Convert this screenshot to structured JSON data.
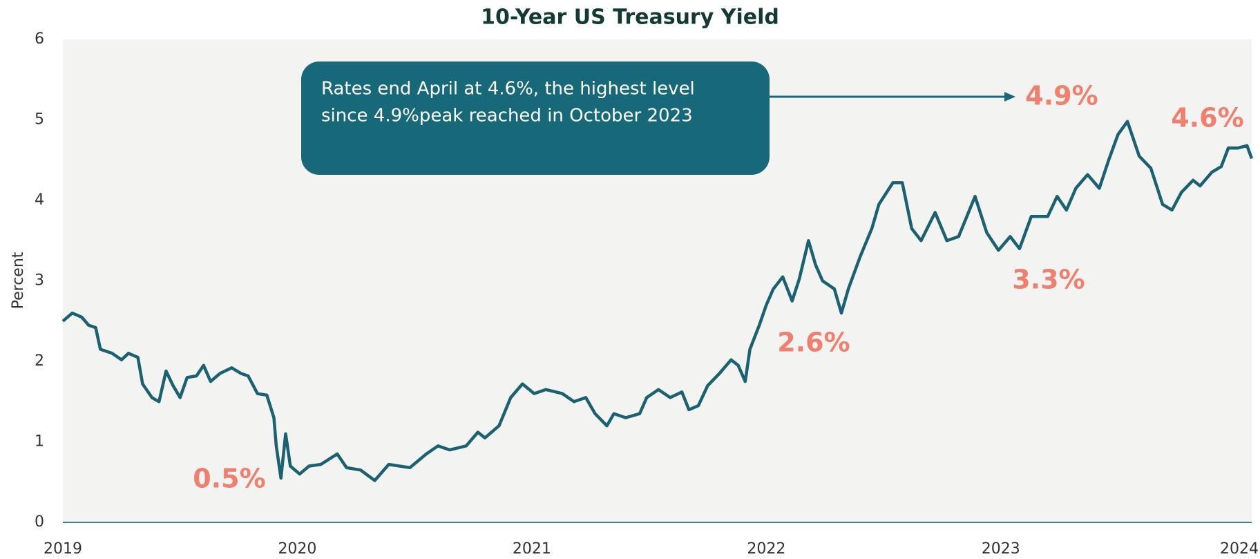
{
  "chart_data": {
    "type": "line",
    "title": "10-Year US Treasury Yield",
    "y_label": "Percent",
    "x": [
      2019.0,
      2019.04,
      2019.08,
      2019.11,
      2019.14,
      2019.16,
      2019.21,
      2019.25,
      2019.28,
      2019.32,
      2019.34,
      2019.38,
      2019.41,
      2019.44,
      2019.47,
      2019.5,
      2019.53,
      2019.57,
      2019.6,
      2019.63,
      2019.67,
      2019.72,
      2019.76,
      2019.79,
      2019.83,
      2019.87,
      2019.9,
      2019.91,
      2019.93,
      2019.95,
      2019.97,
      2020.01,
      2020.05,
      2020.1,
      2020.17,
      2020.21,
      2020.27,
      2020.33,
      2020.39,
      2020.48,
      2020.55,
      2020.6,
      2020.65,
      2020.72,
      2020.77,
      2020.8,
      2020.86,
      2020.91,
      2020.96,
      2021.01,
      2021.06,
      2021.13,
      2021.18,
      2021.23,
      2021.27,
      2021.32,
      2021.35,
      2021.4,
      2021.46,
      2021.49,
      2021.54,
      2021.59,
      2021.64,
      2021.67,
      2021.71,
      2021.75,
      2021.8,
      2021.85,
      2021.88,
      2021.91,
      2021.93,
      2021.97,
      2022.0,
      2022.03,
      2022.07,
      2022.11,
      2022.14,
      2022.18,
      2022.21,
      2022.24,
      2022.29,
      2022.32,
      2022.35,
      2022.4,
      2022.45,
      2022.48,
      2022.54,
      2022.58,
      2022.62,
      2022.66,
      2022.72,
      2022.77,
      2022.82,
      2022.89,
      2022.94,
      2022.99,
      2023.04,
      2023.08,
      2023.13,
      2023.2,
      2023.24,
      2023.28,
      2023.32,
      2023.37,
      2023.42,
      2023.46,
      2023.5,
      2023.54,
      2023.59,
      2023.64,
      2023.69,
      2023.73,
      2023.77,
      2023.82,
      2023.85,
      2023.9,
      2023.94,
      2023.97,
      2024.01,
      2024.05,
      2024.07
    ],
    "series": [
      {
        "name": "10-Year US Treasury Yield",
        "color": "#1a6271",
        "values": [
          2.5,
          2.6,
          2.55,
          2.45,
          2.42,
          2.15,
          2.1,
          2.02,
          2.1,
          2.05,
          1.72,
          1.55,
          1.5,
          1.88,
          1.7,
          1.55,
          1.8,
          1.82,
          1.95,
          1.75,
          1.85,
          1.92,
          1.85,
          1.82,
          1.6,
          1.58,
          1.3,
          0.95,
          0.55,
          1.1,
          0.7,
          0.6,
          0.7,
          0.72,
          0.85,
          0.68,
          0.65,
          0.52,
          0.72,
          0.68,
          0.85,
          0.95,
          0.9,
          0.95,
          1.12,
          1.05,
          1.2,
          1.55,
          1.72,
          1.6,
          1.65,
          1.6,
          1.5,
          1.55,
          1.35,
          1.2,
          1.35,
          1.3,
          1.35,
          1.55,
          1.65,
          1.55,
          1.62,
          1.4,
          1.45,
          1.7,
          1.85,
          2.02,
          1.95,
          1.75,
          2.15,
          2.45,
          2.7,
          2.9,
          3.05,
          2.75,
          3.02,
          3.5,
          3.2,
          3.0,
          2.9,
          2.6,
          2.9,
          3.3,
          3.65,
          3.95,
          4.22,
          4.22,
          3.65,
          3.5,
          3.85,
          3.5,
          3.55,
          4.05,
          3.6,
          3.38,
          3.55,
          3.4,
          3.8,
          3.8,
          4.05,
          3.88,
          4.15,
          4.32,
          4.15,
          4.5,
          4.82,
          4.98,
          4.55,
          4.4,
          3.95,
          3.88,
          4.1,
          4.25,
          4.18,
          4.35,
          4.42,
          4.65,
          4.65,
          4.68,
          4.52
        ]
      }
    ],
    "xlim": [
      2019,
      2024.07
    ],
    "xticks": [
      2019,
      2020,
      2021,
      2022,
      2023,
      2024
    ],
    "ylim": [
      0,
      6
    ],
    "yticks": [
      0,
      1,
      2,
      3,
      4,
      5,
      6
    ],
    "grid": false,
    "annotations": [
      {
        "text": "0.5%"
      },
      {
        "text": "2.6%"
      },
      {
        "text": "3.3%"
      },
      {
        "text": "4.9%"
      },
      {
        "text": "4.6%"
      }
    ],
    "callout": [
      "Rates end April at 4.6%, the highest level",
      "since 4.9%peak reached in October 2023"
    ]
  }
}
